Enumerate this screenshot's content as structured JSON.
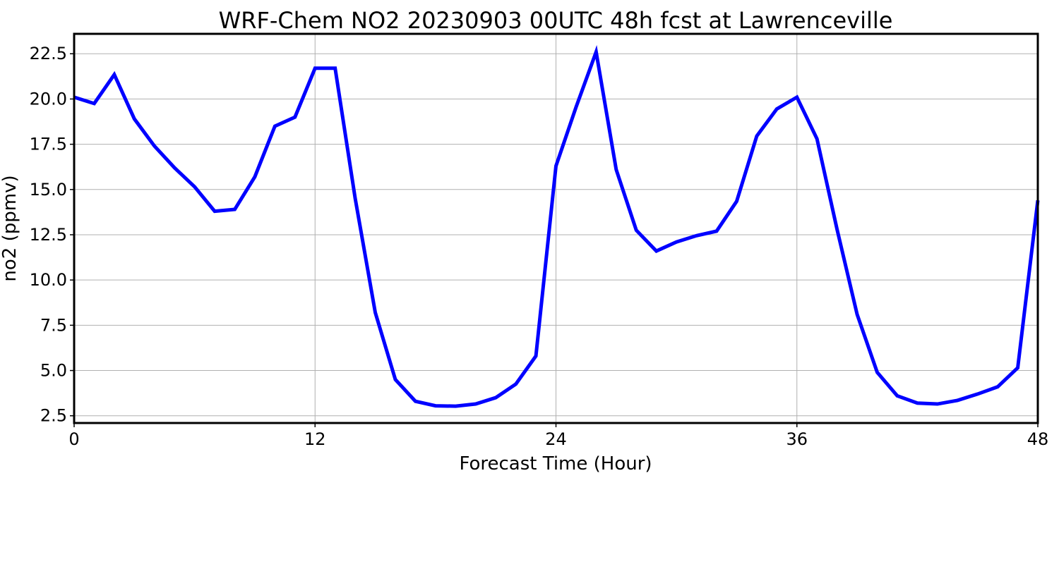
{
  "chart_data": {
    "type": "line",
    "title": "WRF-Chem NO2  20230903 00UTC 48h fcst at Lawrenceville",
    "xlabel": "Forecast Time (Hour)",
    "ylabel": "no2  (ppmv)",
    "xlim": [
      0,
      48
    ],
    "ylim": [
      2.1,
      23.6
    ],
    "x_ticks": [
      0,
      12,
      24,
      36,
      48
    ],
    "x_tick_labels": [
      "0",
      "12",
      "24",
      "36",
      "48"
    ],
    "y_ticks": [
      2.5,
      5.0,
      7.5,
      10.0,
      12.5,
      15.0,
      17.5,
      20.0,
      22.5
    ],
    "y_tick_labels": [
      "2.5",
      "5.0",
      "7.5",
      "10.0",
      "12.5",
      "15.0",
      "17.5",
      "20.0",
      "22.5"
    ],
    "grid": true,
    "line_color": "#0000ff",
    "grid_color": "#b0b0b0",
    "series": [
      {
        "x": [
          0,
          1,
          2,
          3,
          4,
          5,
          6,
          7,
          8,
          9,
          10,
          11,
          12,
          13,
          14,
          15,
          16,
          17,
          18,
          19,
          20,
          21,
          22,
          23,
          24,
          25,
          26,
          27,
          28,
          29,
          30,
          31,
          32,
          33,
          34,
          35,
          36,
          37,
          38,
          39,
          40,
          41,
          42,
          43,
          44,
          45,
          46,
          47,
          48
        ],
        "values": [
          20.1,
          19.75,
          21.35,
          18.9,
          17.4,
          16.2,
          15.15,
          13.8,
          13.9,
          15.7,
          18.5,
          19.0,
          21.7,
          21.7,
          14.5,
          8.2,
          4.5,
          3.3,
          3.05,
          3.03,
          3.15,
          3.5,
          4.25,
          5.8,
          16.3,
          19.55,
          22.6,
          16.1,
          12.75,
          11.6,
          12.1,
          12.45,
          12.7,
          14.35,
          17.95,
          19.45,
          20.1,
          17.8,
          12.8,
          8.1,
          4.9,
          3.6,
          3.2,
          3.15,
          3.35,
          3.7,
          4.1,
          5.15,
          14.4
        ]
      }
    ]
  }
}
